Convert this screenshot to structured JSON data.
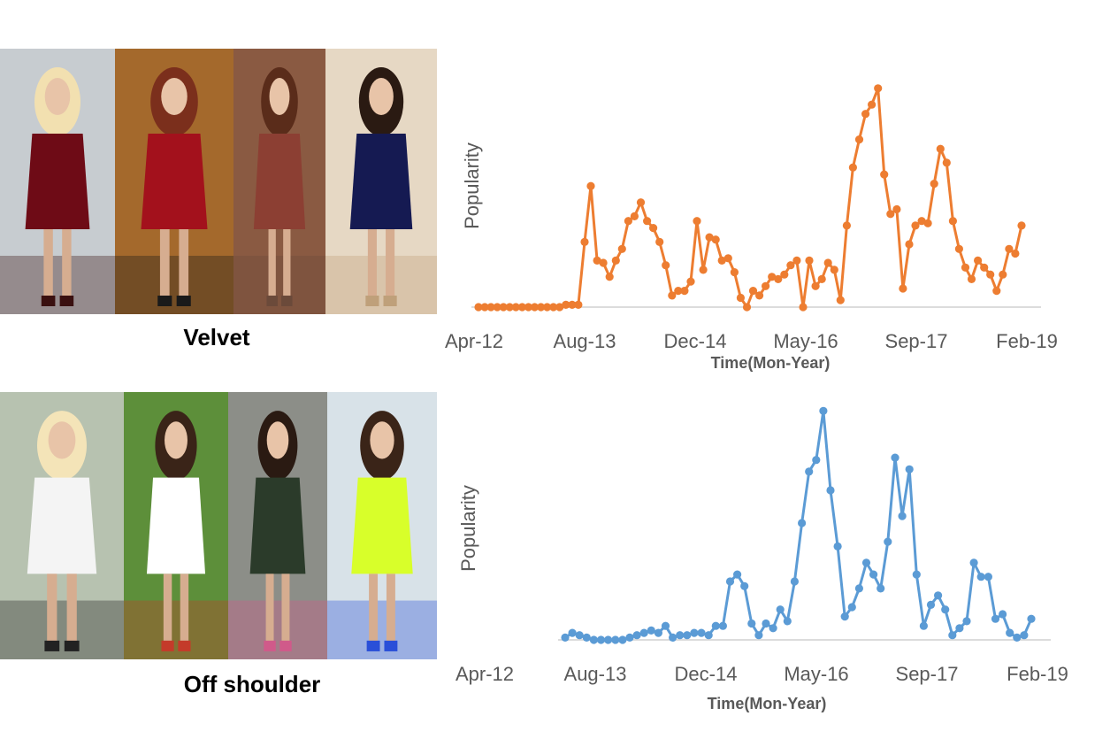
{
  "panels": [
    {
      "caption": "Velvet",
      "photo_colors": [
        {
          "bg": "#c7ccd0",
          "garment": "#6e0b16",
          "hair": "#f2e0b0",
          "accent": "#3a1010"
        },
        {
          "bg": "#a4692c",
          "garment": "#a3111c",
          "hair": "#7b2f1c",
          "accent": "#1a1a1a"
        },
        {
          "bg": "#8a5a42",
          "garment": "#8c3f33",
          "hair": "#5a2c1a",
          "accent": "#6b4a3a"
        },
        {
          "bg": "#e6d8c4",
          "garment": "#151a52",
          "hair": "#2a1a12",
          "accent": "#bfa07a"
        }
      ],
      "chart_data": {
        "type": "line",
        "ylabel": "Popularity",
        "xlabel": "Time(Mon-Year)",
        "tick_labels": [
          "Apr-12",
          "Aug-13",
          "Dec-14",
          "May-16",
          "Sep-17",
          "Feb-19"
        ],
        "color": "#ed7d31",
        "values": [
          0,
          0,
          0,
          0,
          0,
          0,
          0,
          0,
          0,
          0,
          0,
          0,
          0,
          0,
          1,
          1,
          1,
          28,
          52,
          20,
          19,
          13,
          20,
          25,
          37,
          39,
          45,
          37,
          34,
          28,
          18,
          5,
          7,
          7,
          11,
          37,
          16,
          30,
          29,
          20,
          21,
          15,
          4,
          0,
          7,
          5,
          9,
          13,
          12,
          14,
          18,
          20,
          0,
          20,
          9,
          12,
          19,
          16,
          3,
          35,
          60,
          72,
          83,
          87,
          94,
          57,
          40,
          42,
          8,
          27,
          35,
          37,
          36,
          53,
          68,
          62,
          37,
          25,
          17,
          12,
          20,
          17,
          14,
          7,
          14,
          25,
          23,
          35
        ],
        "ylim": [
          0,
          100
        ],
        "grid": false,
        "legend": "none"
      }
    },
    {
      "caption": "Off shoulder",
      "photo_colors": [
        {
          "bg": "#b7c2b0",
          "garment": "#f4f4f4",
          "hair": "#f4e4b8",
          "accent": "#222222"
        },
        {
          "bg": "#5d8f3a",
          "garment": "#ffffff",
          "hair": "#3a2418",
          "accent": "#c43b2a"
        },
        {
          "bg": "#8c8e88",
          "garment": "#2b3b2a",
          "hair": "#2a1a12",
          "accent": "#d05a8a"
        },
        {
          "bg": "#d8e2e8",
          "garment": "#d8ff2a",
          "hair": "#3a2418",
          "accent": "#2a4fd8"
        }
      ],
      "chart_data": {
        "type": "line",
        "ylabel": "Popularity",
        "xlabel": "Time(Mon-Year)",
        "tick_labels": [
          "Apr-12",
          "Aug-13",
          "Dec-14",
          "May-16",
          "Sep-17",
          "Feb-19"
        ],
        "color": "#5b9bd5",
        "values": [
          1,
          3,
          2,
          1,
          0,
          0,
          0,
          0,
          0,
          1,
          2,
          3,
          4,
          3,
          6,
          1,
          2,
          2,
          3,
          3,
          2,
          6,
          6,
          25,
          28,
          23,
          7,
          2,
          7,
          5,
          13,
          8,
          25,
          50,
          72,
          77,
          98,
          64,
          40,
          10,
          14,
          22,
          33,
          28,
          22,
          42,
          78,
          53,
          73,
          28,
          6,
          15,
          19,
          13,
          2,
          5,
          8,
          33,
          27,
          27,
          9,
          11,
          3,
          1,
          2,
          9
        ],
        "ylim": [
          0,
          100
        ],
        "grid": false,
        "legend": "none"
      }
    }
  ]
}
